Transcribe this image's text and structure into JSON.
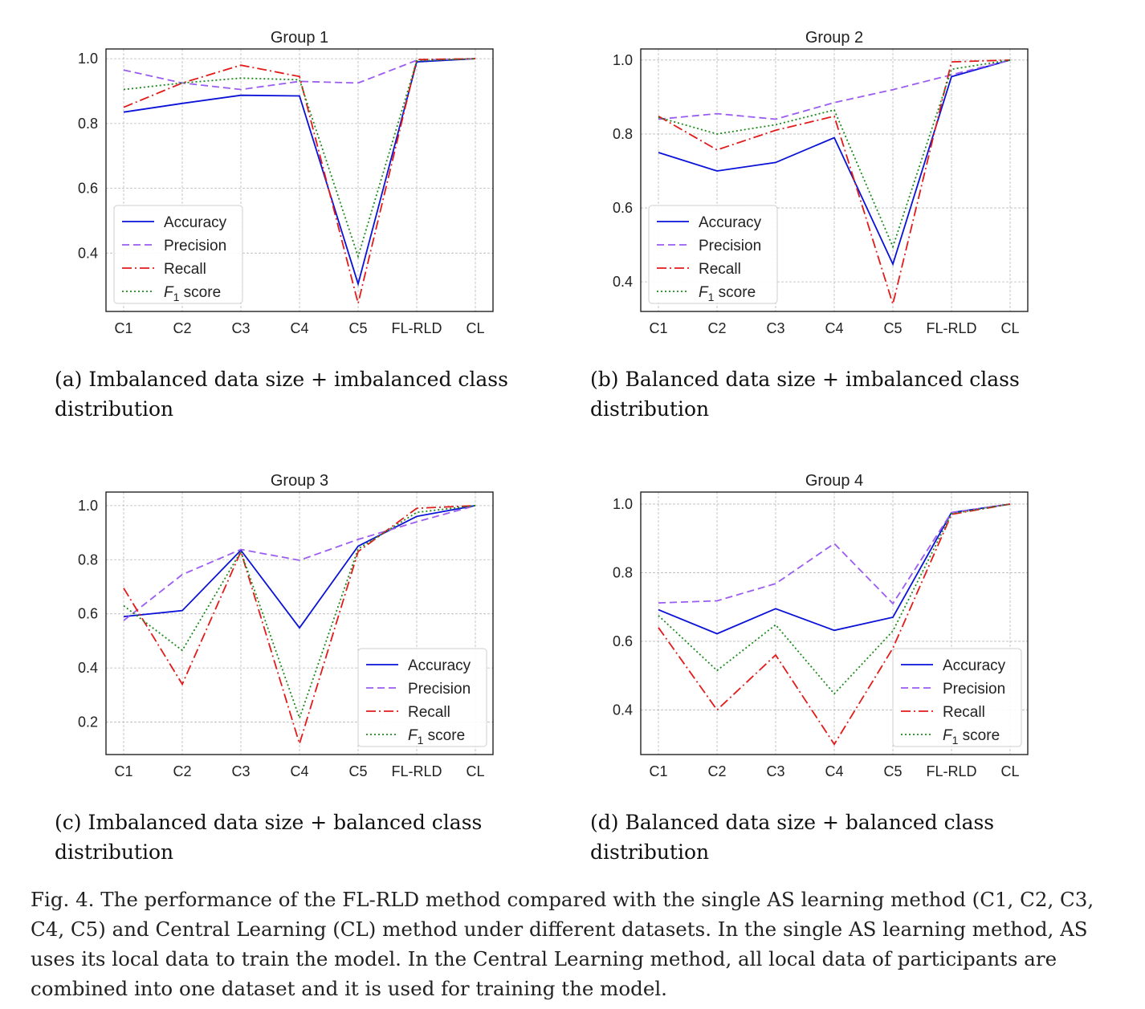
{
  "chart_data": [
    {
      "type": "line",
      "title": "Group 1",
      "categories": [
        "C1",
        "C2",
        "C3",
        "C4",
        "C5",
        "FL-RLD",
        "CL"
      ],
      "ylim": [
        0.22,
        1.03
      ],
      "yticks": [
        0.4,
        0.6,
        0.8,
        1.0
      ],
      "grid": true,
      "legend": "lower-left",
      "series": [
        {
          "name": "Accuracy",
          "values": [
            0.835,
            0.862,
            0.887,
            0.885,
            0.305,
            0.99,
            1.0
          ]
        },
        {
          "name": "Precision",
          "values": [
            0.965,
            0.925,
            0.905,
            0.93,
            0.925,
            0.995,
            1.0
          ]
        },
        {
          "name": "Recall",
          "values": [
            0.85,
            0.925,
            0.98,
            0.945,
            0.245,
            0.997,
            1.0
          ]
        },
        {
          "name": "F1 score",
          "values": [
            0.905,
            0.925,
            0.94,
            0.935,
            0.39,
            0.993,
            1.0
          ]
        }
      ]
    },
    {
      "type": "line",
      "title": "Group 2",
      "categories": [
        "C1",
        "C2",
        "C3",
        "C4",
        "C5",
        "FL-RLD",
        "CL"
      ],
      "ylim": [
        0.32,
        1.03
      ],
      "yticks": [
        0.4,
        0.6,
        0.8,
        1.0
      ],
      "grid": true,
      "legend": "lower-left",
      "series": [
        {
          "name": "Accuracy",
          "values": [
            0.75,
            0.7,
            0.723,
            0.79,
            0.448,
            0.955,
            1.0
          ]
        },
        {
          "name": "Precision",
          "values": [
            0.84,
            0.855,
            0.84,
            0.885,
            0.92,
            0.96,
            1.0
          ]
        },
        {
          "name": "Recall",
          "values": [
            0.848,
            0.757,
            0.81,
            0.848,
            0.34,
            0.995,
            1.0
          ]
        },
        {
          "name": "F1 score",
          "values": [
            0.845,
            0.8,
            0.825,
            0.865,
            0.495,
            0.975,
            1.0
          ]
        }
      ]
    },
    {
      "type": "line",
      "title": "Group 3",
      "categories": [
        "C1",
        "C2",
        "C3",
        "C4",
        "C5",
        "FL-RLD",
        "CL"
      ],
      "ylim": [
        0.08,
        1.05
      ],
      "yticks": [
        0.2,
        0.4,
        0.6,
        0.8,
        1.0
      ],
      "grid": true,
      "legend": "lower-right",
      "series": [
        {
          "name": "Accuracy",
          "values": [
            0.59,
            0.612,
            0.835,
            0.548,
            0.85,
            0.96,
            1.0
          ]
        },
        {
          "name": "Precision",
          "values": [
            0.575,
            0.745,
            0.838,
            0.798,
            0.875,
            0.94,
            1.0
          ]
        },
        {
          "name": "Recall",
          "values": [
            0.695,
            0.34,
            0.83,
            0.12,
            0.83,
            0.99,
            1.0
          ]
        },
        {
          "name": "F1 score",
          "values": [
            0.63,
            0.465,
            0.83,
            0.215,
            0.84,
            0.975,
            1.0
          ]
        }
      ]
    },
    {
      "type": "line",
      "title": "Group 4",
      "categories": [
        "C1",
        "C2",
        "C3",
        "C4",
        "C5",
        "FL-RLD",
        "CL"
      ],
      "ylim": [
        0.27,
        1.035
      ],
      "yticks": [
        0.4,
        0.6,
        0.8,
        1.0
      ],
      "grid": true,
      "legend": "lower-right",
      "series": [
        {
          "name": "Accuracy",
          "values": [
            0.692,
            0.622,
            0.695,
            0.632,
            0.67,
            0.975,
            1.0
          ]
        },
        {
          "name": "Precision",
          "values": [
            0.712,
            0.718,
            0.768,
            0.885,
            0.71,
            0.975,
            1.0
          ]
        },
        {
          "name": "Recall",
          "values": [
            0.64,
            0.4,
            0.56,
            0.3,
            0.58,
            0.97,
            1.0
          ]
        },
        {
          "name": "F1 score",
          "values": [
            0.675,
            0.515,
            0.648,
            0.447,
            0.63,
            0.972,
            1.0
          ]
        }
      ]
    }
  ],
  "subcaptions": [
    "(a) Imbalanced data size + imbalanced class distribution",
    "(b) Balanced data size + imbalanced class distribution",
    "(c) Imbalanced data size + balanced class distribution",
    "(d) Balanced data size + balanced class distribution"
  ],
  "figure_caption": "Fig. 4.  The performance of the FL-RLD method compared with the single AS learning method (C1, C2, C3, C4, C5) and Central Learning (CL) method under different datasets. In the single AS learning method, AS uses its local data to train the model. In the Central Learning method, all local data of participants are combined into one dataset and it is used for training the model.",
  "style": {
    "series_colors": [
      "#0a12d8",
      "#9b5cf2",
      "#e31a1a",
      "#1a8a1a"
    ],
    "series_dash": [
      "",
      "9,5",
      "12,4,2,4",
      "2,3"
    ]
  }
}
